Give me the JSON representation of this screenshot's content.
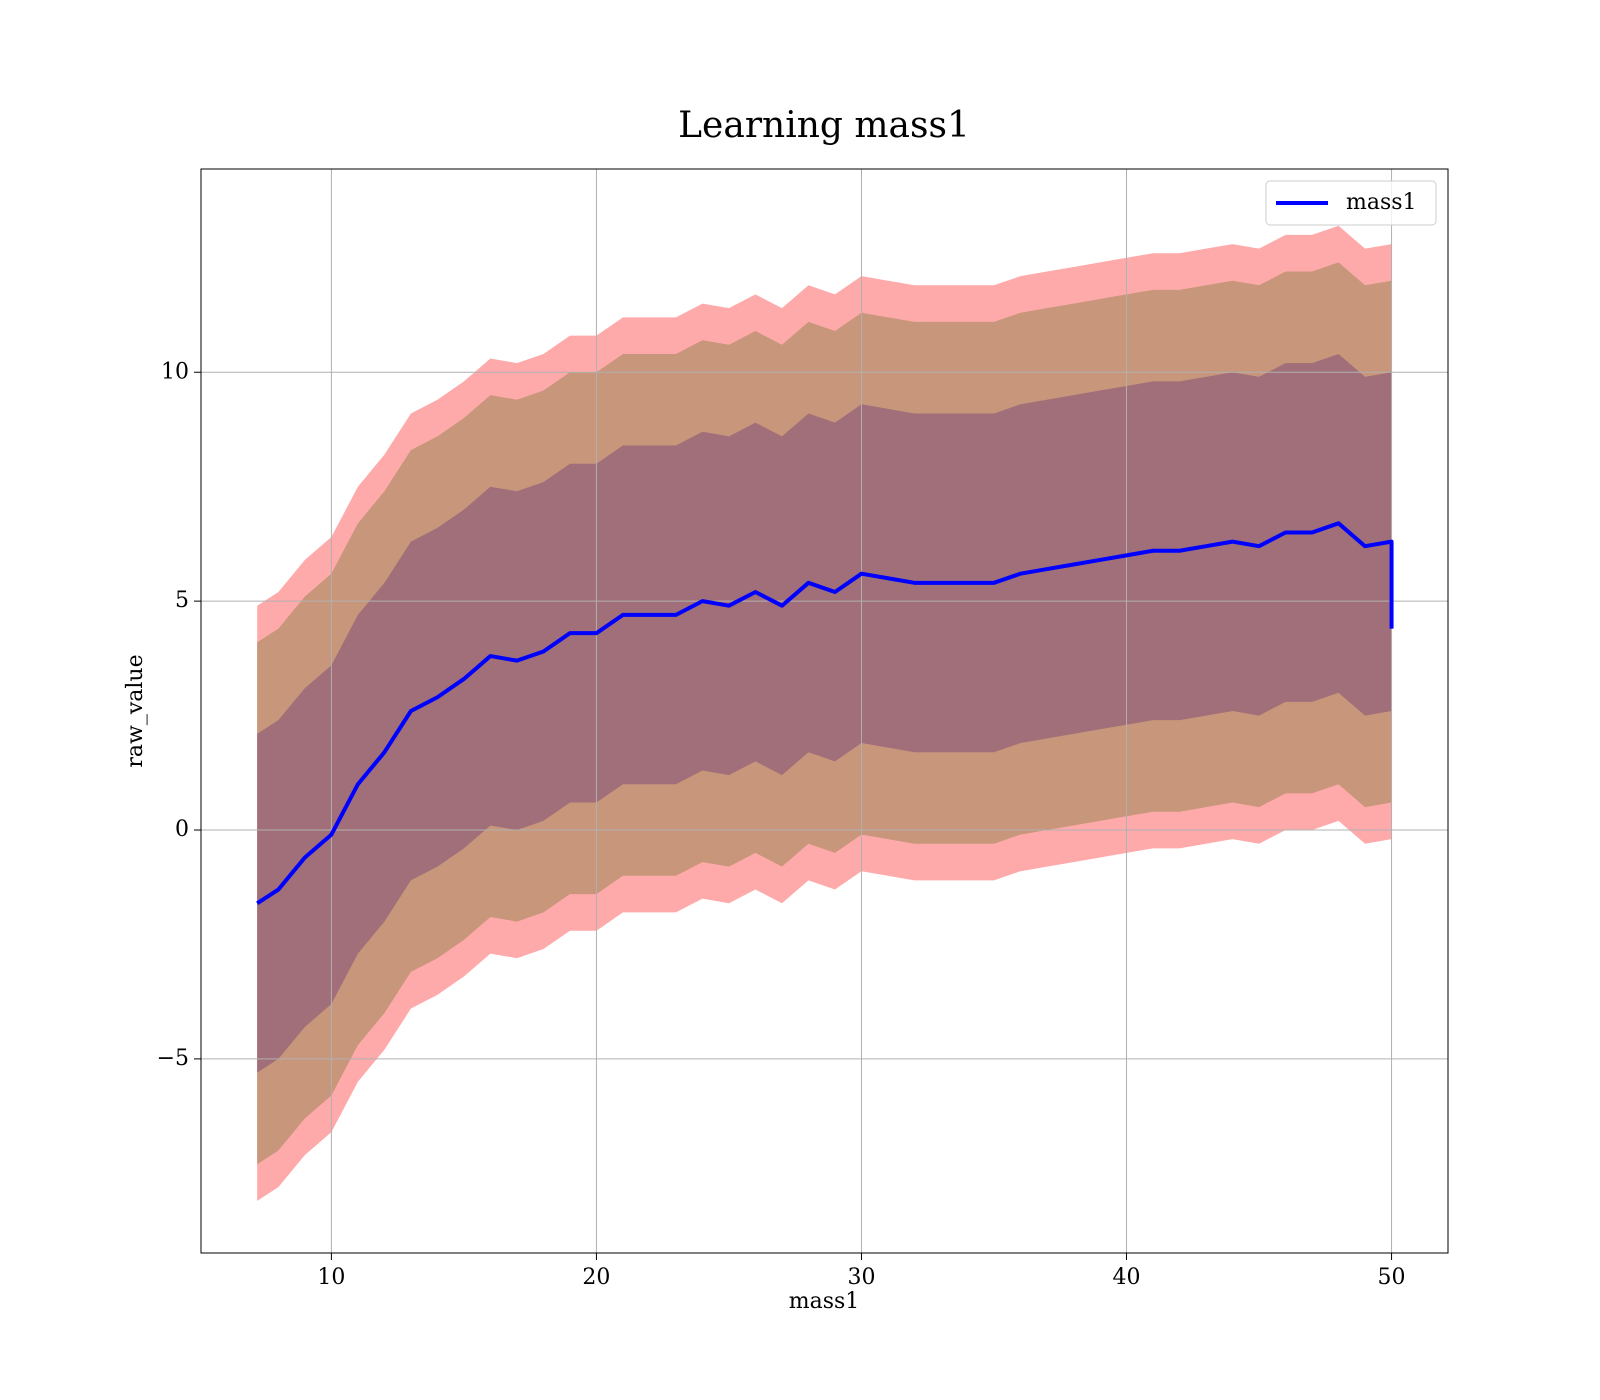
{
  "chart_data": {
    "type": "line",
    "title": "Learning mass1",
    "xlabel": "mass1",
    "ylabel": "raw_value",
    "x": [
      7.2,
      8,
      9,
      10,
      11,
      12,
      13,
      14,
      15,
      16,
      17,
      18,
      19,
      20,
      21,
      22,
      23,
      24,
      25,
      26,
      27,
      28,
      29,
      30,
      31,
      32,
      33,
      34,
      35,
      36,
      37,
      38,
      39,
      40,
      41,
      42,
      43,
      44,
      45,
      46,
      47,
      48,
      49,
      50,
      50
    ],
    "series": [
      {
        "name": "mass1",
        "color": "#0000ff",
        "values": [
          -1.6,
          -1.3,
          -0.6,
          -0.1,
          1.0,
          1.7,
          2.6,
          2.9,
          3.3,
          3.8,
          3.7,
          3.9,
          4.3,
          4.3,
          4.7,
          4.7,
          4.7,
          5.0,
          4.9,
          5.2,
          4.9,
          5.4,
          5.2,
          5.6,
          5.5,
          5.4,
          5.4,
          5.4,
          5.4,
          5.6,
          5.7,
          5.8,
          5.9,
          6.0,
          6.1,
          6.1,
          6.2,
          6.3,
          6.2,
          6.5,
          6.5,
          6.7,
          6.2,
          6.3,
          4.4
        ]
      }
    ],
    "bands": [
      {
        "color": "#ffaaaa",
        "upper": [
          4.9,
          5.2,
          5.9,
          6.4,
          7.5,
          8.2,
          9.1,
          9.4,
          9.8,
          10.3,
          10.2,
          10.4,
          10.8,
          10.8,
          11.2,
          11.2,
          11.2,
          11.5,
          11.4,
          11.7,
          11.4,
          11.9,
          11.7,
          12.1,
          12.0,
          11.9,
          11.9,
          11.9,
          11.9,
          12.1,
          12.2,
          12.3,
          12.4,
          12.5,
          12.6,
          12.6,
          12.7,
          12.8,
          12.7,
          13.0,
          13.0,
          13.2,
          12.7,
          12.8,
          12.8
        ],
        "lower": [
          -8.1,
          -7.8,
          -7.1,
          -6.6,
          -5.5,
          -4.8,
          -3.9,
          -3.6,
          -3.2,
          -2.7,
          -2.8,
          -2.6,
          -2.2,
          -2.2,
          -1.8,
          -1.8,
          -1.8,
          -1.5,
          -1.6,
          -1.3,
          -1.6,
          -1.1,
          -1.3,
          -0.9,
          -1.0,
          -1.1,
          -1.1,
          -1.1,
          -1.1,
          -0.9,
          -0.8,
          -0.7,
          -0.6,
          -0.5,
          -0.4,
          -0.4,
          -0.3,
          -0.2,
          -0.3,
          0.0,
          0.0,
          0.2,
          -0.3,
          -0.2,
          -0.2
        ]
      },
      {
        "color": "#c8967a",
        "upper": [
          4.1,
          4.4,
          5.1,
          5.6,
          6.7,
          7.4,
          8.3,
          8.6,
          9.0,
          9.5,
          9.4,
          9.6,
          10.0,
          10.0,
          10.4,
          10.4,
          10.4,
          10.7,
          10.6,
          10.9,
          10.6,
          11.1,
          10.9,
          11.3,
          11.2,
          11.1,
          11.1,
          11.1,
          11.1,
          11.3,
          11.4,
          11.5,
          11.6,
          11.7,
          11.8,
          11.8,
          11.9,
          12.0,
          11.9,
          12.2,
          12.2,
          12.4,
          11.9,
          12.0,
          12.0
        ],
        "lower": [
          -7.3,
          -7.0,
          -6.3,
          -5.8,
          -4.7,
          -4.0,
          -3.1,
          -2.8,
          -2.4,
          -1.9,
          -2.0,
          -1.8,
          -1.4,
          -1.4,
          -1.0,
          -1.0,
          -1.0,
          -0.7,
          -0.8,
          -0.5,
          -0.8,
          -0.3,
          -0.5,
          -0.1,
          -0.2,
          -0.3,
          -0.3,
          -0.3,
          -0.3,
          -0.1,
          0.0,
          0.1,
          0.2,
          0.3,
          0.4,
          0.4,
          0.5,
          0.6,
          0.5,
          0.8,
          0.8,
          1.0,
          0.5,
          0.6,
          0.6
        ]
      },
      {
        "color": "#a06f79",
        "upper": [
          2.1,
          2.4,
          3.1,
          3.6,
          4.7,
          5.4,
          6.3,
          6.6,
          7.0,
          7.5,
          7.4,
          7.6,
          8.0,
          8.0,
          8.4,
          8.4,
          8.4,
          8.7,
          8.6,
          8.9,
          8.6,
          9.1,
          8.9,
          9.3,
          9.2,
          9.1,
          9.1,
          9.1,
          9.1,
          9.3,
          9.4,
          9.5,
          9.6,
          9.7,
          9.8,
          9.8,
          9.9,
          10.0,
          9.9,
          10.2,
          10.2,
          10.4,
          9.9,
          10.0,
          10.0
        ],
        "lower": [
          -5.3,
          -5.0,
          -4.3,
          -3.8,
          -2.7,
          -2.0,
          -1.1,
          -0.8,
          -0.4,
          0.1,
          0.0,
          0.2,
          0.6,
          0.6,
          1.0,
          1.0,
          1.0,
          1.3,
          1.2,
          1.5,
          1.2,
          1.7,
          1.5,
          1.9,
          1.8,
          1.7,
          1.7,
          1.7,
          1.7,
          1.9,
          2.0,
          2.1,
          2.2,
          2.3,
          2.4,
          2.4,
          2.5,
          2.6,
          2.5,
          2.8,
          2.8,
          3.0,
          2.5,
          2.6,
          2.6
        ]
      }
    ],
    "xlim": [
      5.08,
      52.13
    ],
    "ylim": [
      -9.24,
      14.44
    ],
    "xticks": [
      10,
      20,
      30,
      40,
      50
    ],
    "yticks": [
      {
        "value": -5,
        "label": "−5"
      },
      0,
      5,
      10
    ],
    "grid": true,
    "legend": "upper right"
  }
}
